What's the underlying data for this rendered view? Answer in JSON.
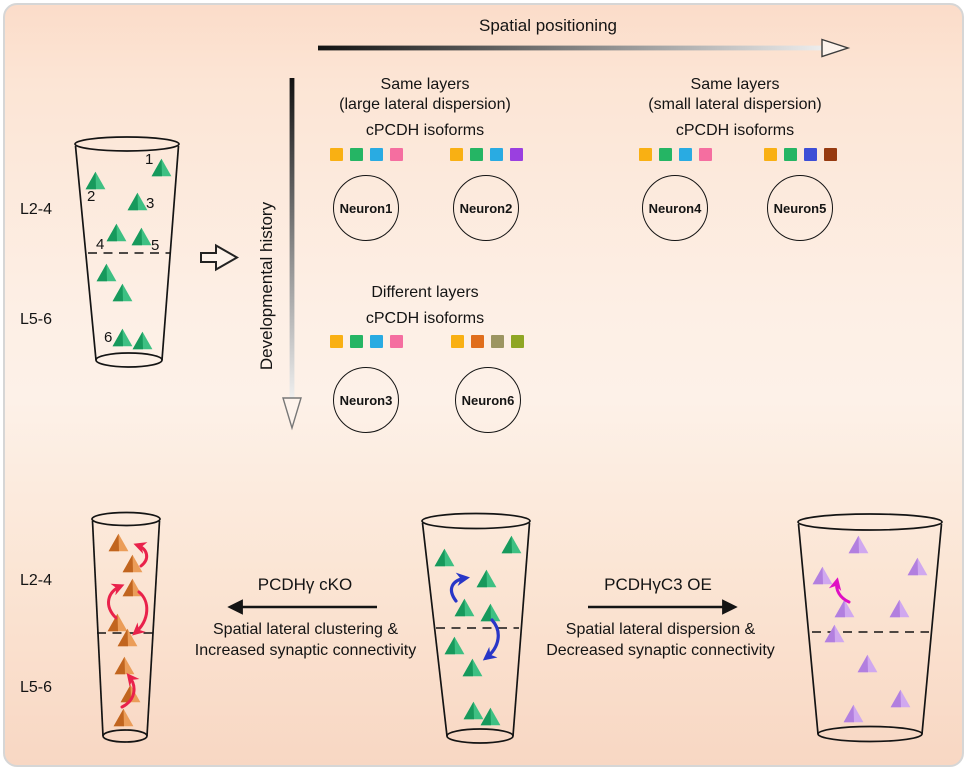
{
  "axes": {
    "horizontal": "Spatial positioning",
    "vertical": "Developmental history"
  },
  "source_flask": {
    "layer_labels": [
      "L2-4",
      "L5-6"
    ],
    "neuron_numbers": [
      "1",
      "2",
      "3",
      "4",
      "5",
      "6"
    ]
  },
  "panels": [
    {
      "title": "Same layers",
      "subtitle": "(large lateral dispersion)",
      "isoform_label": "cPCDH isoforms",
      "neurons": [
        {
          "name": "Neuron1",
          "isoforms": [
            "#f9b013",
            "#25b564",
            "#29abe2",
            "#f56ea0"
          ]
        },
        {
          "name": "Neuron2",
          "isoforms": [
            "#f9b013",
            "#25b564",
            "#29abe2",
            "#9a3fe0"
          ]
        }
      ]
    },
    {
      "title": "Same layers",
      "subtitle": "(small lateral dispersion)",
      "isoform_label": "cPCDH isoforms",
      "neurons": [
        {
          "name": "Neuron4",
          "isoforms": [
            "#f9b013",
            "#25b564",
            "#29abe2",
            "#f56ea0"
          ]
        },
        {
          "name": "Neuron5",
          "isoforms": [
            "#f9b013",
            "#25b564",
            "#3d4ed6",
            "#963a10"
          ]
        }
      ]
    },
    {
      "title": "Different layers",
      "subtitle": "",
      "isoform_label": "cPCDH isoforms",
      "neurons": [
        {
          "name": "Neuron3",
          "isoforms": [
            "#f9b013",
            "#25b564",
            "#29abe2",
            "#f56ea0"
          ]
        },
        {
          "name": "Neuron6",
          "isoforms": [
            "#f9b013",
            "#e06e1c",
            "#9c9561",
            "#8fa624"
          ]
        }
      ]
    }
  ],
  "bottom": {
    "layer_labels": [
      "L2-4",
      "L5-6"
    ],
    "cko": {
      "title": "PCDHγ cKO",
      "line1": "Spatial lateral clustering &",
      "line2": "Increased synaptic connectivity"
    },
    "oe": {
      "title": "PCDHγC3 OE",
      "line1": "Spatial lateral dispersion &",
      "line2": "Decreased synaptic connectivity"
    }
  },
  "colors": {
    "triangle_green": "#3ec083",
    "triangle_green_dark": "#17995c",
    "triangle_orange": "#eb9d59",
    "triangle_orange_dark": "#c1651f",
    "triangle_purple": "#d0a8ef",
    "triangle_purple_dark": "#b27fdf",
    "arrow_red": "#e9224b",
    "arrow_blue": "#2836c7",
    "arrow_magenta": "#df10c4"
  }
}
